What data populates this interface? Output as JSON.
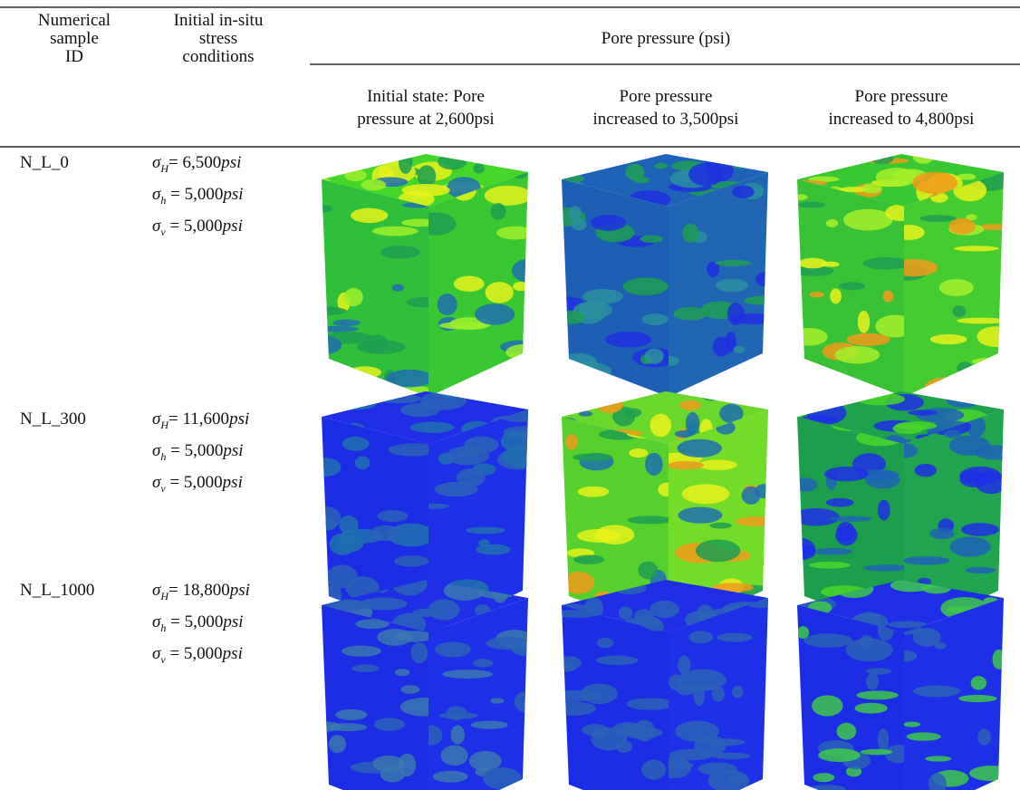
{
  "table": {
    "header": {
      "id": [
        "Numerical",
        "sample",
        "ID"
      ],
      "stress": [
        "Initial in-situ",
        "stress",
        "conditions"
      ],
      "pore_group": "Pore pressure (psi)",
      "pore_cols": [
        [
          "Initial state: Pore",
          "pressure at 2,600psi"
        ],
        [
          "Pore pressure",
          "increased to 3,500psi"
        ],
        [
          "Pore pressure",
          "increased to 4,800psi"
        ]
      ]
    },
    "rows": [
      {
        "id": "N_L_0",
        "stress": [
          {
            "symbol": "σ",
            "sub": "H",
            "rest": "= 6,500",
            "unit": "psi"
          },
          {
            "symbol": "σ",
            "sub": "h",
            "rest": " = 5,000",
            "unit": "psi"
          },
          {
            "symbol": "σ",
            "sub": "v",
            "rest": " = 5,000",
            "unit": "psi"
          }
        ]
      },
      {
        "id": "N_L_300",
        "stress": [
          {
            "symbol": "σ",
            "sub": "H",
            "rest": "= 11,600",
            "unit": "psi"
          },
          {
            "symbol": "σ",
            "sub": "h",
            "rest": " = 5,000",
            "unit": "psi"
          },
          {
            "symbol": "σ",
            "sub": "v",
            "rest": " = 5,000",
            "unit": "psi"
          }
        ]
      },
      {
        "id": "N_L_1000",
        "stress": [
          {
            "symbol": "σ",
            "sub": "H",
            "rest": "= 18,800",
            "unit": "psi"
          },
          {
            "symbol": "σ",
            "sub": "h",
            "rest": " = 5,000",
            "unit": "psi"
          },
          {
            "symbol": "σ",
            "sub": "v",
            "rest": " = 5,000",
            "unit": "psi"
          }
        ]
      }
    ]
  }
}
